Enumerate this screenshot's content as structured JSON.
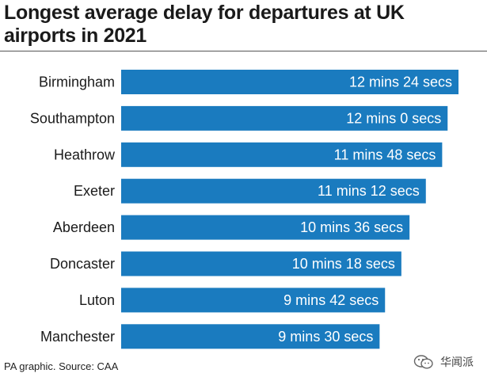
{
  "header": {
    "title": "Longest average delay for departures at UK airports in 2021"
  },
  "footer": {
    "source": "PA graphic. Source: CAA",
    "watermark_text": "华闻派",
    "watermark_icon": "wechat-icon"
  },
  "colors": {
    "bar": "#1a7bbf",
    "bar_label": "#ffffff",
    "category_label": "#1a1a1a"
  },
  "chart_data": {
    "type": "bar",
    "orientation": "horizontal",
    "title": "Longest average delay for departures at UK airports in 2021",
    "xlabel": "",
    "ylabel": "",
    "grid": false,
    "xlim": [
      0,
      12.4
    ],
    "categories": [
      "Birmingham",
      "Southampton",
      "Heathrow",
      "Exeter",
      "Aberdeen",
      "Doncaster",
      "Luton",
      "Manchester"
    ],
    "values": [
      12.4,
      12.0,
      11.8,
      11.2,
      10.6,
      10.3,
      9.7,
      9.5
    ],
    "data_labels": [
      "12 mins 24 secs",
      "12 mins 0 secs",
      "11 mins 48 secs",
      "11 mins 12 secs",
      "10 mins 36 secs",
      "10 mins 18 secs",
      "9 mins 42 secs",
      "9 mins 30 secs"
    ]
  }
}
